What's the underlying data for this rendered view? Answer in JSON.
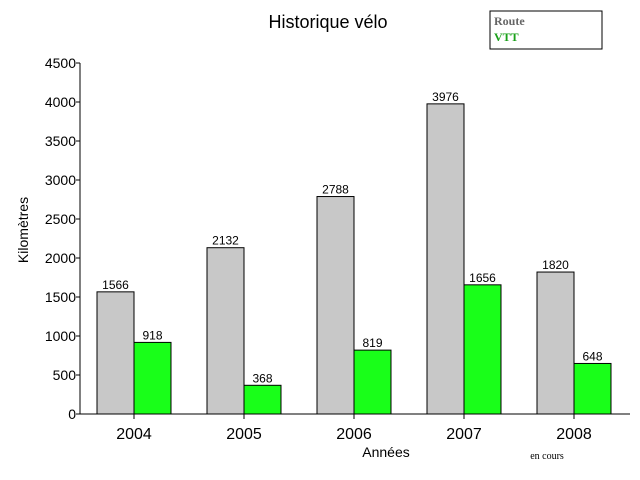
{
  "chart_data": {
    "type": "bar",
    "title": "Historique vélo",
    "xlabel": "Années",
    "ylabel": "Kilomètres",
    "categories": [
      "2004",
      "2005",
      "2006",
      "2007",
      "2008"
    ],
    "category_note": "en cours",
    "series": [
      {
        "name": "Route",
        "values": [
          1566,
          2132,
          2788,
          3976,
          1820
        ]
      },
      {
        "name": "VTT",
        "values": [
          918,
          368,
          819,
          1656,
          648
        ]
      }
    ],
    "ylim": [
      0,
      4500
    ],
    "yticks": [
      "0",
      "500",
      "1000",
      "1500",
      "2000",
      "2500",
      "3000",
      "3500",
      "4000",
      "4500"
    ],
    "grid": false,
    "legend_position": "top-right",
    "colors": {
      "Route": "#c8c8c8",
      "VTT": "#19ff19",
      "legend_route_text": "#666666",
      "legend_vtt_text": "#1aa01a"
    }
  }
}
